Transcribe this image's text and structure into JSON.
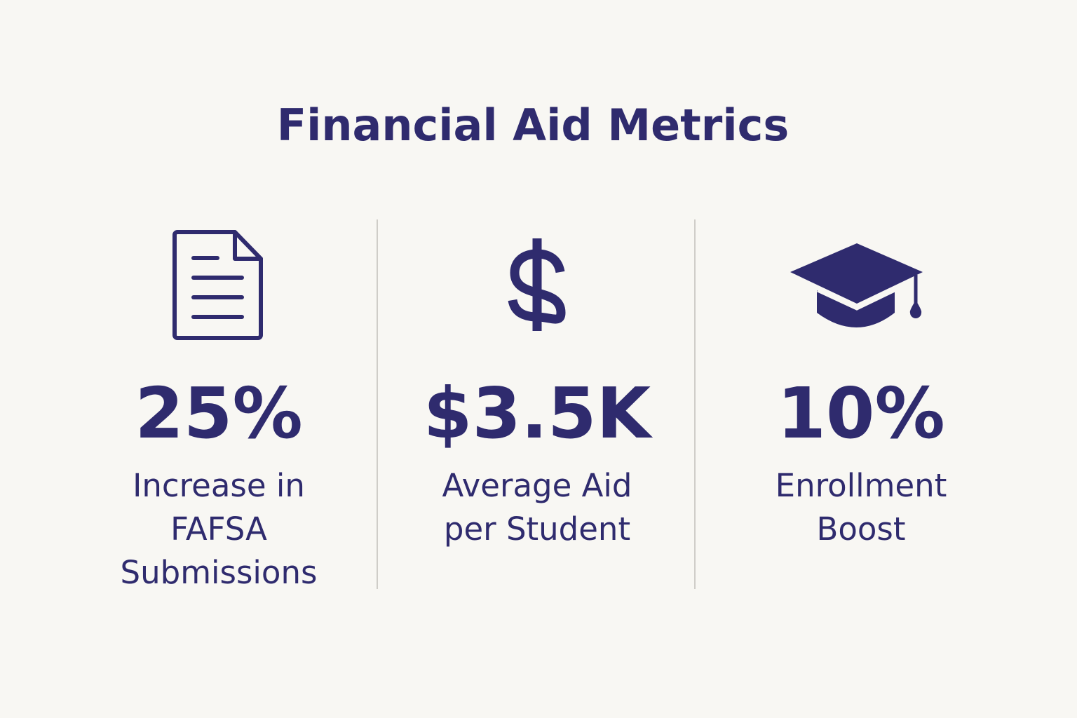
{
  "title": "Financial Aid Metrics",
  "metrics": [
    {
      "value": "25%",
      "label": [
        "Increase in",
        "FAFSA",
        "Submissions"
      ]
    },
    {
      "value": "$3.5K",
      "label": [
        "Average Aid",
        "per Student"
      ]
    },
    {
      "value": "10%",
      "label": [
        "Enrollment",
        "Boost"
      ]
    }
  ]
}
